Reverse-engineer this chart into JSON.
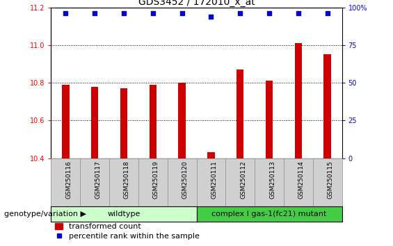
{
  "title": "GDS3452 / 172010_x_at",
  "categories": [
    "GSM250116",
    "GSM250117",
    "GSM250118",
    "GSM250119",
    "GSM250120",
    "GSM250111",
    "GSM250112",
    "GSM250113",
    "GSM250114",
    "GSM250115"
  ],
  "bar_values": [
    10.79,
    10.78,
    10.77,
    10.79,
    10.8,
    10.43,
    10.87,
    10.81,
    11.01,
    10.95
  ],
  "percentile_y_actual": [
    11.17,
    11.17,
    11.17,
    11.17,
    11.17,
    11.15,
    11.17,
    11.17,
    11.17,
    11.17
  ],
  "ylim_left": [
    10.4,
    11.2
  ],
  "ylim_right": [
    0,
    100
  ],
  "yticks_left": [
    10.4,
    10.6,
    10.8,
    11.0,
    11.2
  ],
  "yticks_right": [
    0,
    25,
    50,
    75,
    100
  ],
  "bar_color": "#cc0000",
  "dot_color": "#0000cc",
  "wildtype_samples": 5,
  "mutant_samples": 5,
  "wildtype_label": "wildtype",
  "mutant_label": "complex I gas-1(fc21) mutant",
  "wildtype_color": "#ccffcc",
  "mutant_color": "#44cc44",
  "group_label": "genotype/variation",
  "legend_bar_label": "transformed count",
  "legend_dot_label": "percentile rank within the sample",
  "title_fontsize": 10,
  "tick_fontsize": 7,
  "label_fontsize": 8
}
